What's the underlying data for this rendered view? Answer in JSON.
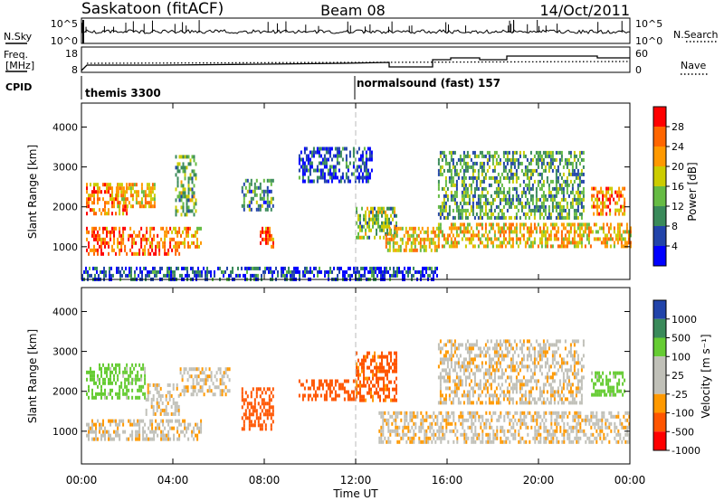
{
  "header": {
    "station": "Saskatoon (fitACF)",
    "beam": "Beam 08",
    "date": "14/Oct/2011"
  },
  "noise_panel": {
    "left_label": "N.Sky",
    "left_ticks": [
      "10^5",
      "10^0"
    ],
    "right_label": "N.Search",
    "right_ticks": [
      "10^5",
      "10^0"
    ]
  },
  "freq_panel": {
    "left_label_line1": "Freq.",
    "left_label_line2": "[MHz]",
    "left_ticks": [
      "18",
      "8"
    ],
    "right_label": "Nave",
    "right_ticks": [
      "60",
      "0"
    ]
  },
  "cpid": {
    "label": "CPID",
    "segments": [
      {
        "name": "themis 3300",
        "start_hour": 0
      },
      {
        "name": "normalsound (fast) 157",
        "start_hour": 12
      }
    ]
  },
  "x_axis": {
    "label": "Time UT",
    "ticks": [
      "00:00",
      "04:00",
      "08:00",
      "12:00",
      "16:00",
      "20:00",
      "00:00"
    ],
    "range_hours": [
      0,
      24
    ]
  },
  "chart_data": [
    {
      "type": "heatmap",
      "quantity": "power",
      "ylabel": "Slant Range [km]",
      "ylim": [
        180,
        4600
      ],
      "yticks": [
        "1000",
        "2000",
        "3000",
        "4000"
      ],
      "colorbar_label": "Power [dB]",
      "colorbar_ticks": [
        "28",
        "24",
        "20",
        "16",
        "12",
        "8",
        "4"
      ],
      "colorbar_colors": [
        "#ff0000",
        "#ff6600",
        "#ff9900",
        "#cccc00",
        "#66bb44",
        "#3a8a5a",
        "#2244aa",
        "#0000ff"
      ],
      "regions": [
        {
          "t0": 0.2,
          "t1": 4.3,
          "r0": 800,
          "r1": 1500,
          "level": 26
        },
        {
          "t0": 0.2,
          "t1": 2.0,
          "r0": 1800,
          "r1": 2600,
          "level": 24
        },
        {
          "t0": 1.5,
          "t1": 3.2,
          "r0": 2000,
          "r1": 2600,
          "level": 20
        },
        {
          "t0": 4.0,
          "t1": 5.2,
          "r0": 1000,
          "r1": 1500,
          "level": 22
        },
        {
          "t0": 4.1,
          "t1": 5.0,
          "r0": 1800,
          "r1": 3300,
          "level": 14
        },
        {
          "t0": 7.0,
          "t1": 8.4,
          "r0": 1900,
          "r1": 2700,
          "level": 10
        },
        {
          "t0": 7.8,
          "t1": 8.4,
          "r0": 1000,
          "r1": 1500,
          "level": 26
        },
        {
          "t0": 9.5,
          "t1": 12.7,
          "r0": 2600,
          "r1": 3500,
          "level": 6
        },
        {
          "t0": 12.0,
          "t1": 13.8,
          "r0": 1200,
          "r1": 2000,
          "level": 14
        },
        {
          "t0": 13.3,
          "t1": 15.6,
          "r0": 900,
          "r1": 1500,
          "level": 20
        },
        {
          "t0": 15.6,
          "t1": 24.0,
          "r0": 1000,
          "r1": 1600,
          "level": 20
        },
        {
          "t0": 15.6,
          "t1": 22.0,
          "r0": 1700,
          "r1": 3400,
          "level": 12
        },
        {
          "t0": 22.3,
          "t1": 23.8,
          "r0": 1800,
          "r1": 2500,
          "level": 24
        },
        {
          "t0": 0.0,
          "t1": 15.6,
          "r0": 200,
          "r1": 500,
          "level": 6
        }
      ]
    },
    {
      "type": "heatmap",
      "quantity": "velocity",
      "ylabel": "Slant Range [km]",
      "ylim": [
        180,
        4600
      ],
      "yticks": [
        "1000",
        "2000",
        "3000",
        "4000"
      ],
      "colorbar_label": "Velocity [m s⁻¹]",
      "colorbar_ticks": [
        "1000",
        "500",
        "100",
        "25",
        "-25",
        "-100",
        "-500",
        "-1000"
      ],
      "colorbar_colors": [
        "#2244aa",
        "#3a8a5a",
        "#66cc33",
        "#c0c0b8",
        "#c0c0b8",
        "#ff9900",
        "#ff5500",
        "#ff0000"
      ],
      "regions": [
        {
          "t0": 0.2,
          "t1": 5.2,
          "r0": 800,
          "r1": 1300,
          "level": 0
        },
        {
          "t0": 0.2,
          "t1": 2.8,
          "r0": 1800,
          "r1": 2700,
          "level": 150
        },
        {
          "t0": 2.8,
          "t1": 4.3,
          "r0": 1400,
          "r1": 2200,
          "level": 0
        },
        {
          "t0": 4.3,
          "t1": 6.5,
          "r0": 1900,
          "r1": 2600,
          "level": 0
        },
        {
          "t0": 7.0,
          "t1": 8.4,
          "r0": 1100,
          "r1": 2100,
          "level": -200
        },
        {
          "t0": 9.5,
          "t1": 12.0,
          "r0": 1800,
          "r1": 2300,
          "level": -200
        },
        {
          "t0": 12.0,
          "t1": 13.8,
          "r0": 1800,
          "r1": 3000,
          "level": -150
        },
        {
          "t0": 13.0,
          "t1": 24.0,
          "r0": 700,
          "r1": 1500,
          "level": 0
        },
        {
          "t0": 15.6,
          "t1": 22.0,
          "r0": 1700,
          "r1": 3300,
          "level": 0
        },
        {
          "t0": 22.3,
          "t1": 23.8,
          "r0": 1900,
          "r1": 2500,
          "level": 150
        }
      ]
    }
  ]
}
